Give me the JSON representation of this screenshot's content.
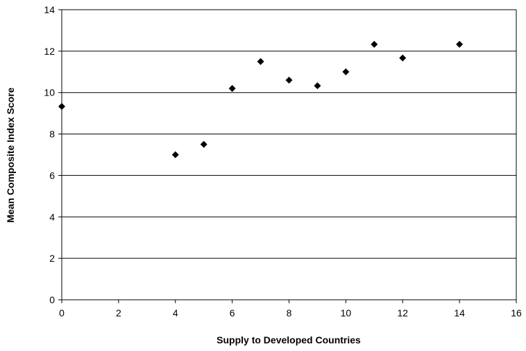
{
  "chart_data": {
    "type": "scatter",
    "title": "",
    "xlabel": "Supply to Developed Countries",
    "ylabel": "Mean Composite Index Score",
    "xlim": [
      0,
      16
    ],
    "ylim": [
      0,
      14
    ],
    "x_ticks": [
      0,
      2,
      4,
      6,
      8,
      10,
      12,
      14,
      16
    ],
    "y_ticks": [
      0,
      2,
      4,
      6,
      8,
      10,
      12,
      14
    ],
    "grid": "horizontal",
    "legend": "none",
    "marker": "diamond",
    "marker_color": "#000000",
    "series": [
      {
        "points": [
          {
            "x": 0,
            "y": 9.33
          },
          {
            "x": 4,
            "y": 7.0
          },
          {
            "x": 5,
            "y": 7.5
          },
          {
            "x": 6,
            "y": 10.2
          },
          {
            "x": 7,
            "y": 11.5
          },
          {
            "x": 8,
            "y": 10.6
          },
          {
            "x": 9,
            "y": 10.33
          },
          {
            "x": 10,
            "y": 11.0
          },
          {
            "x": 11,
            "y": 12.33
          },
          {
            "x": 12,
            "y": 11.67
          },
          {
            "x": 14,
            "y": 12.33
          }
        ]
      }
    ]
  }
}
